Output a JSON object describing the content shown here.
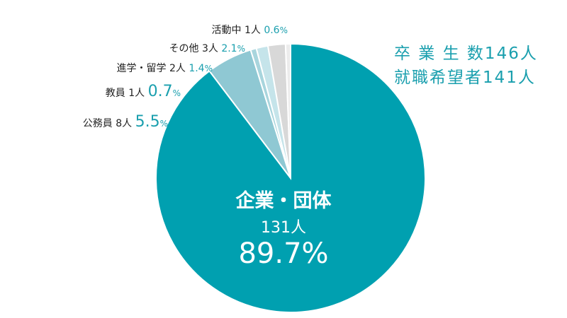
{
  "summary": {
    "graduates": "卒 業 生 数146人",
    "job_seekers": "就職希望者141人"
  },
  "chart_data": {
    "type": "pie",
    "title": "",
    "slices": [
      {
        "label": "企業・団体",
        "count": "131人",
        "value": 89.7,
        "pct": "89.7",
        "color": "#00a0b0"
      },
      {
        "label": "公務員",
        "count": "8人",
        "value": 5.5,
        "pct": "5.5",
        "color": "#8fc8d3"
      },
      {
        "label": "教員",
        "count": "1人",
        "value": 0.7,
        "pct": "0.7",
        "color": "#a8d5dd"
      },
      {
        "label": "進学・留学",
        "count": "2人",
        "value": 1.4,
        "pct": "1.4",
        "color": "#c5e4ea"
      },
      {
        "label": "その他",
        "count": "3人",
        "value": 2.1,
        "pct": "2.1",
        "color": "#d8d8d8"
      },
      {
        "label": "活動中",
        "count": "1人",
        "value": 0.6,
        "pct": "0.6",
        "color": "#ececec"
      }
    ],
    "unit_symbol": "%"
  }
}
